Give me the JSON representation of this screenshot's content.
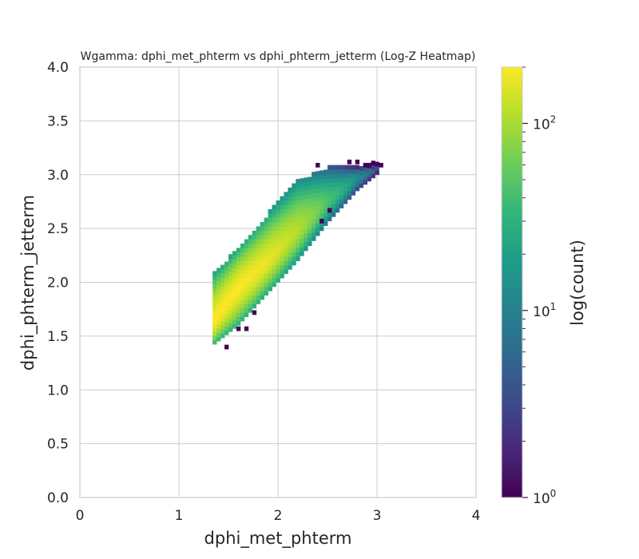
{
  "chart_data": {
    "type": "heatmap",
    "title": "Wgamma: dphi_met_phterm vs dphi_phterm_jetterm (Log-Z Heatmap)",
    "xlabel": "dphi_met_phterm",
    "ylabel": "dphi_phterm_jetterm",
    "xlim": [
      0,
      4
    ],
    "ylim": [
      0,
      4
    ],
    "x_ticks": [
      "0",
      "1",
      "2",
      "3",
      "4"
    ],
    "y_ticks": [
      "0.0",
      "0.5",
      "1.0",
      "1.5",
      "2.0",
      "2.5",
      "3.0",
      "3.5",
      "4.0"
    ],
    "grid": true,
    "colormap": "viridis",
    "z_scale": "log",
    "colorbar": {
      "label": "log(count)",
      "range": [
        1,
        200
      ],
      "tick_labels": [
        {
          "value": 1,
          "base": "10",
          "exp": "0"
        },
        {
          "value": 10,
          "base": "10",
          "exp": "1"
        },
        {
          "value": 100,
          "base": "10",
          "exp": "2"
        }
      ]
    },
    "bin_width": 0.04,
    "band_profile": [
      {
        "x": 1.34,
        "y_low": 1.41,
        "y_high": 2.05,
        "y_peak": 1.62,
        "peak_count": 200
      },
      {
        "x": 1.6,
        "y_low": 1.6,
        "y_high": 2.31,
        "y_peak": 1.95,
        "peak_count": 200
      },
      {
        "x": 1.9,
        "y_low": 1.9,
        "y_high": 2.62,
        "y_peak": 2.2,
        "peak_count": 170
      },
      {
        "x": 2.2,
        "y_low": 2.2,
        "y_high": 2.93,
        "y_peak": 2.48,
        "peak_count": 110
      },
      {
        "x": 2.5,
        "y_low": 2.55,
        "y_high": 3.05,
        "y_peak": 2.75,
        "peak_count": 45
      },
      {
        "x": 2.8,
        "y_low": 2.85,
        "y_high": 3.07,
        "y_peak": 2.97,
        "peak_count": 14
      },
      {
        "x": 3.0,
        "y_low": 3.0,
        "y_high": 3.1,
        "y_peak": 3.05,
        "peak_count": 4
      }
    ],
    "outlier_bins": [
      {
        "x": 1.46,
        "y": 1.38,
        "count": 1
      },
      {
        "x": 1.58,
        "y": 1.55,
        "count": 1
      },
      {
        "x": 1.66,
        "y": 1.55,
        "count": 1
      },
      {
        "x": 1.74,
        "y": 1.7,
        "count": 1
      },
      {
        "x": 2.42,
        "y": 2.55,
        "count": 1
      },
      {
        "x": 2.5,
        "y": 2.65,
        "count": 1
      },
      {
        "x": 2.7,
        "y": 3.1,
        "count": 1
      },
      {
        "x": 2.78,
        "y": 3.1,
        "count": 1
      },
      {
        "x": 2.9,
        "y": 3.07,
        "count": 1
      },
      {
        "x": 3.02,
        "y": 3.07,
        "count": 1
      },
      {
        "x": 2.38,
        "y": 3.07,
        "count": 1
      }
    ]
  }
}
